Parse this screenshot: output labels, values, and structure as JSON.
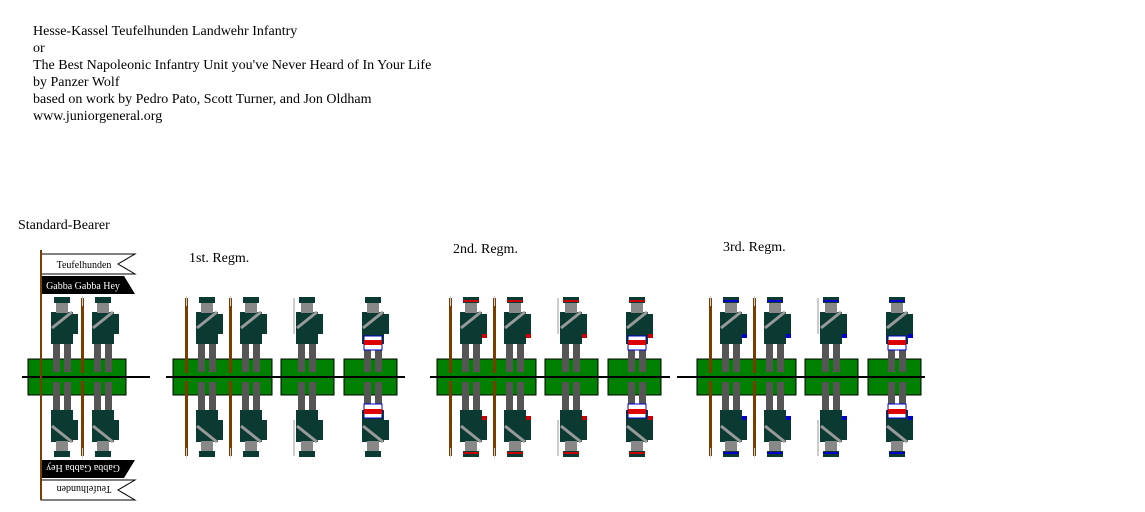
{
  "header": {
    "lines": [
      "Hesse-Kassel Teufelhunden Landwehr Infantry",
      "or",
      "The Best Napoleonic Infantry Unit you've Never Heard of In Your Life",
      "by Panzer Wolf",
      "based on work by Pedro Pato, Scott Turner, and Jon Oldham",
      "www.juniorgeneral.org"
    ]
  },
  "sections": {
    "standard_bearer": "Standard-Bearer",
    "regiment_1": "1st. Regm.",
    "regiment_2": "2nd. Regm.",
    "regiment_3": "3rd. Regm."
  },
  "flag": {
    "top_text": "Teufelhunden",
    "bottom_text": "Gabba Gabba Hey"
  },
  "colors": {
    "coat": "#0a3a32",
    "base": "#008000",
    "regiment_1_facing": "#0a3a32",
    "regiment_2_facing": "#cc0000",
    "regiment_3_facing": "#0000cc"
  }
}
